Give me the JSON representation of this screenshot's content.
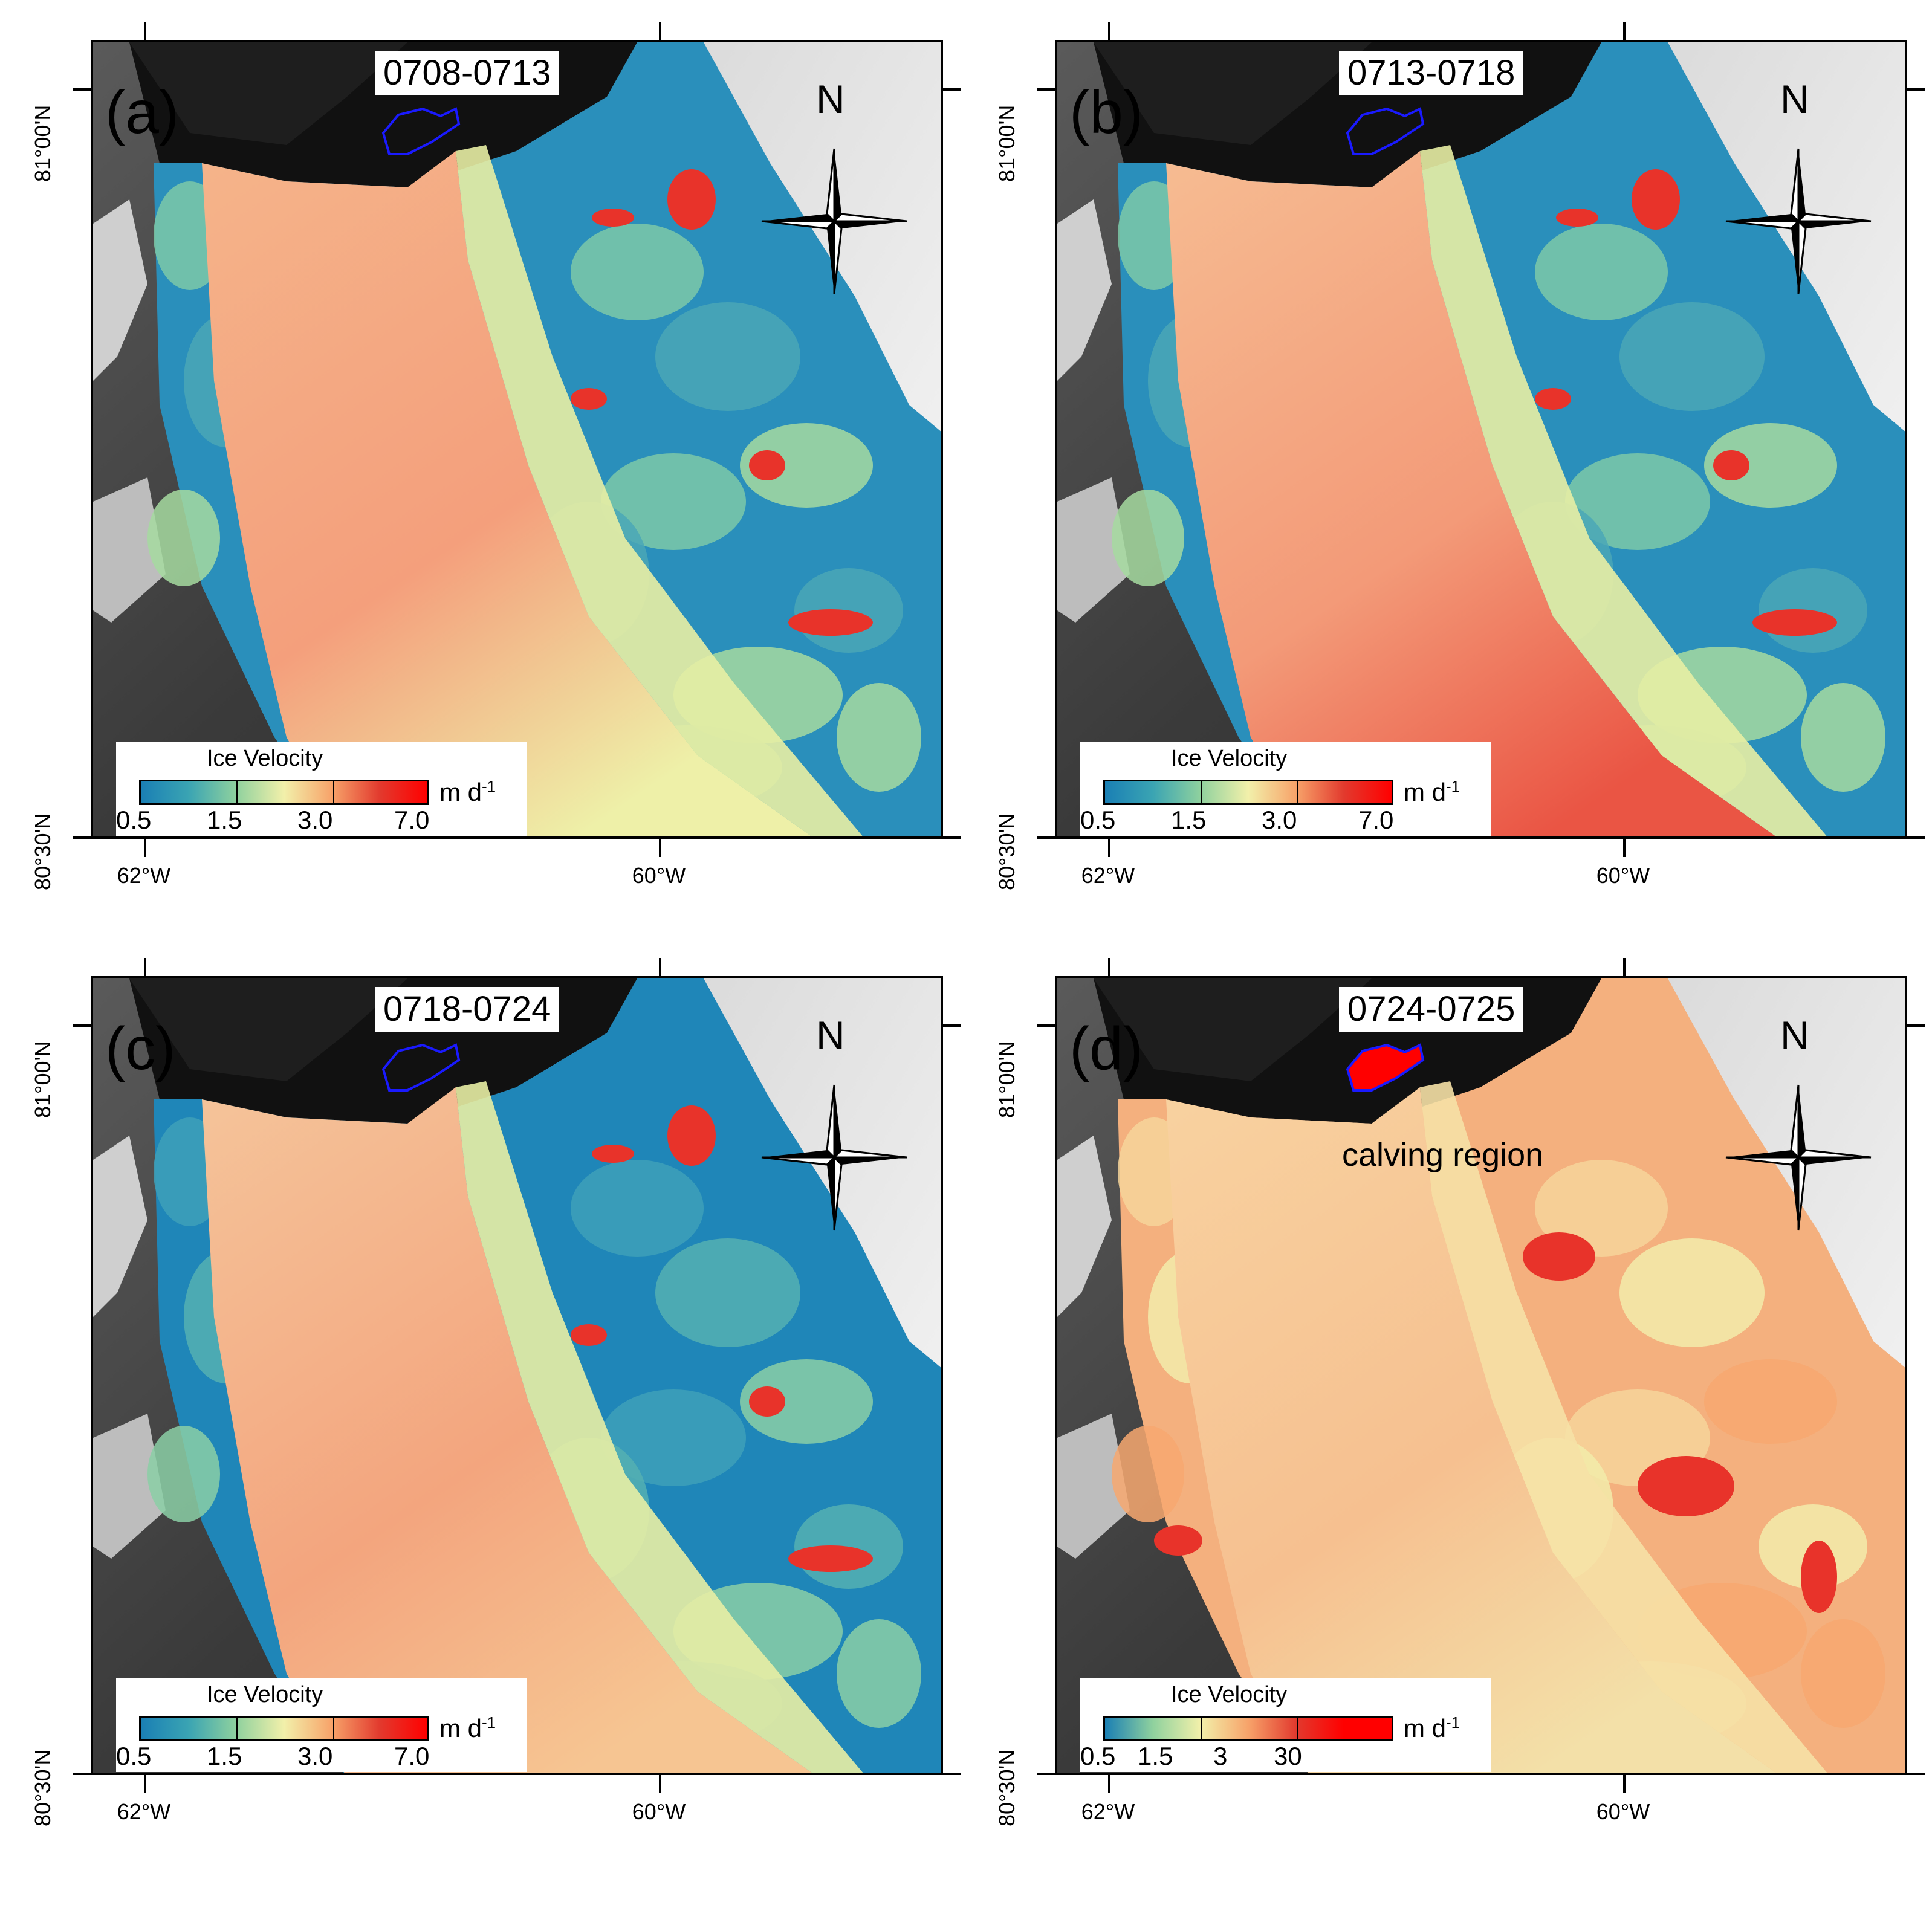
{
  "figure": {
    "panels": [
      {
        "letter": "(a)",
        "date_range": "0708-0713",
        "north_label": "N",
        "legend": {
          "title": "Ice Velocity",
          "unit_base": "m d",
          "unit_exp": "-1",
          "ticks": [
            "0.5",
            "1.5",
            "3.0",
            "7.0"
          ],
          "colors": [
            "#1a7fb4",
            "#3aa4b3",
            "#8fd19e",
            "#f2f0aa",
            "#f7a36a",
            "#e23a2e",
            "#ff0000"
          ]
        },
        "axis": {
          "lon_left": "62°W",
          "lon_right": "60°W",
          "lat_top": "81°00'N",
          "lat_bottom": "80°30'N"
        },
        "annotation": "",
        "style": "blue"
      },
      {
        "letter": "(b)",
        "date_range": "0713-0718",
        "north_label": "N",
        "legend": {
          "title": "Ice Velocity",
          "unit_base": "m d",
          "unit_exp": "-1",
          "ticks": [
            "0.5",
            "1.5",
            "3.0",
            "7.0"
          ],
          "colors": [
            "#1a7fb4",
            "#3aa4b3",
            "#8fd19e",
            "#f2f0aa",
            "#f7a36a",
            "#e23a2e",
            "#ff0000"
          ]
        },
        "axis": {
          "lon_left": "62°W",
          "lon_right": "60°W",
          "lat_top": "81°00'N",
          "lat_bottom": "80°30'N"
        },
        "annotation": "",
        "style": "blue-red"
      },
      {
        "letter": "(c)",
        "date_range": "0718-0724",
        "north_label": "N",
        "legend": {
          "title": "Ice Velocity",
          "unit_base": "m d",
          "unit_exp": "-1",
          "ticks": [
            "0.5",
            "1.5",
            "3.0",
            "7.0"
          ],
          "colors": [
            "#1a7fb4",
            "#3aa4b3",
            "#8fd19e",
            "#f2f0aa",
            "#f7a36a",
            "#e23a2e",
            "#ff0000"
          ]
        },
        "axis": {
          "lon_left": "62°W",
          "lon_right": "60°W",
          "lat_top": "81°00'N",
          "lat_bottom": "80°30'N"
        },
        "annotation": "",
        "style": "blue-smooth"
      },
      {
        "letter": "(d)",
        "date_range": "0724-0725",
        "north_label": "N",
        "legend": {
          "title": "Ice Velocity",
          "unit_base": "m d",
          "unit_exp": "-1",
          "ticks": [
            "0.5",
            "1.5",
            "3",
            "30"
          ],
          "colors": [
            "#1a7fb4",
            "#8fd19e",
            "#f2f0aa",
            "#f7a36a",
            "#e23a2e",
            "#ff0000",
            "#ff0000"
          ]
        },
        "axis": {
          "lon_left": "62°W",
          "lon_right": "60°W",
          "lat_top": "81°00'N",
          "lat_bottom": "80°30'N"
        },
        "annotation": "calving region",
        "style": "red"
      }
    ]
  }
}
